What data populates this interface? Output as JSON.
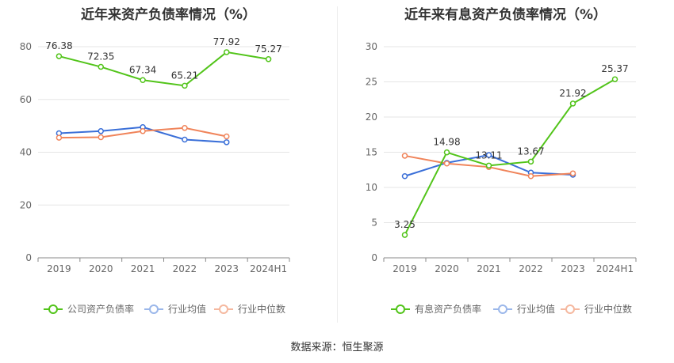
{
  "chart_data": [
    {
      "type": "line",
      "title": "近年来资产负债率情况（%）",
      "categories": [
        "2019",
        "2020",
        "2021",
        "2022",
        "2023",
        "2024H1"
      ],
      "ylim": [
        0,
        80
      ],
      "yticks": [
        0,
        20,
        40,
        60,
        80
      ],
      "grid": true,
      "legend_position": "bottom",
      "series": [
        {
          "name": "公司资产负债率",
          "color": "#52c41a",
          "values": [
            76.38,
            72.35,
            67.34,
            65.21,
            77.92,
            75.27
          ],
          "labels": [
            "76.38",
            "72.35",
            "67.34",
            "65.21",
            "77.92",
            "75.27"
          ]
        },
        {
          "name": "行业均值",
          "color": "#3a6fd8",
          "values": [
            47.2,
            48.0,
            49.5,
            44.8,
            43.8,
            null
          ]
        },
        {
          "name": "行业中位数",
          "color": "#f0845a",
          "values": [
            45.5,
            45.7,
            48.0,
            49.2,
            46.0,
            null
          ]
        }
      ]
    },
    {
      "type": "line",
      "title": "近年来有息资产负债率情况（%）",
      "categories": [
        "2019",
        "2020",
        "2021",
        "2022",
        "2023",
        "2024H1"
      ],
      "ylim": [
        0,
        30
      ],
      "yticks": [
        0,
        5,
        10,
        15,
        20,
        25,
        30
      ],
      "grid": true,
      "legend_position": "bottom",
      "series": [
        {
          "name": "有息资产负债率",
          "color": "#52c41a",
          "values": [
            3.25,
            14.98,
            13.11,
            13.67,
            21.92,
            25.37
          ],
          "labels": [
            "3.25",
            "14.98",
            "13.11",
            "13.67",
            "21.92",
            "25.37"
          ]
        },
        {
          "name": "行业均值",
          "color": "#3a6fd8",
          "values": [
            11.6,
            13.5,
            14.6,
            12.1,
            11.8,
            null
          ]
        },
        {
          "name": "行业中位数",
          "color": "#f0845a",
          "values": [
            14.5,
            13.4,
            12.9,
            11.6,
            12.0,
            null
          ]
        }
      ]
    }
  ],
  "footer": {
    "source": "数据来源：恒生聚源"
  }
}
